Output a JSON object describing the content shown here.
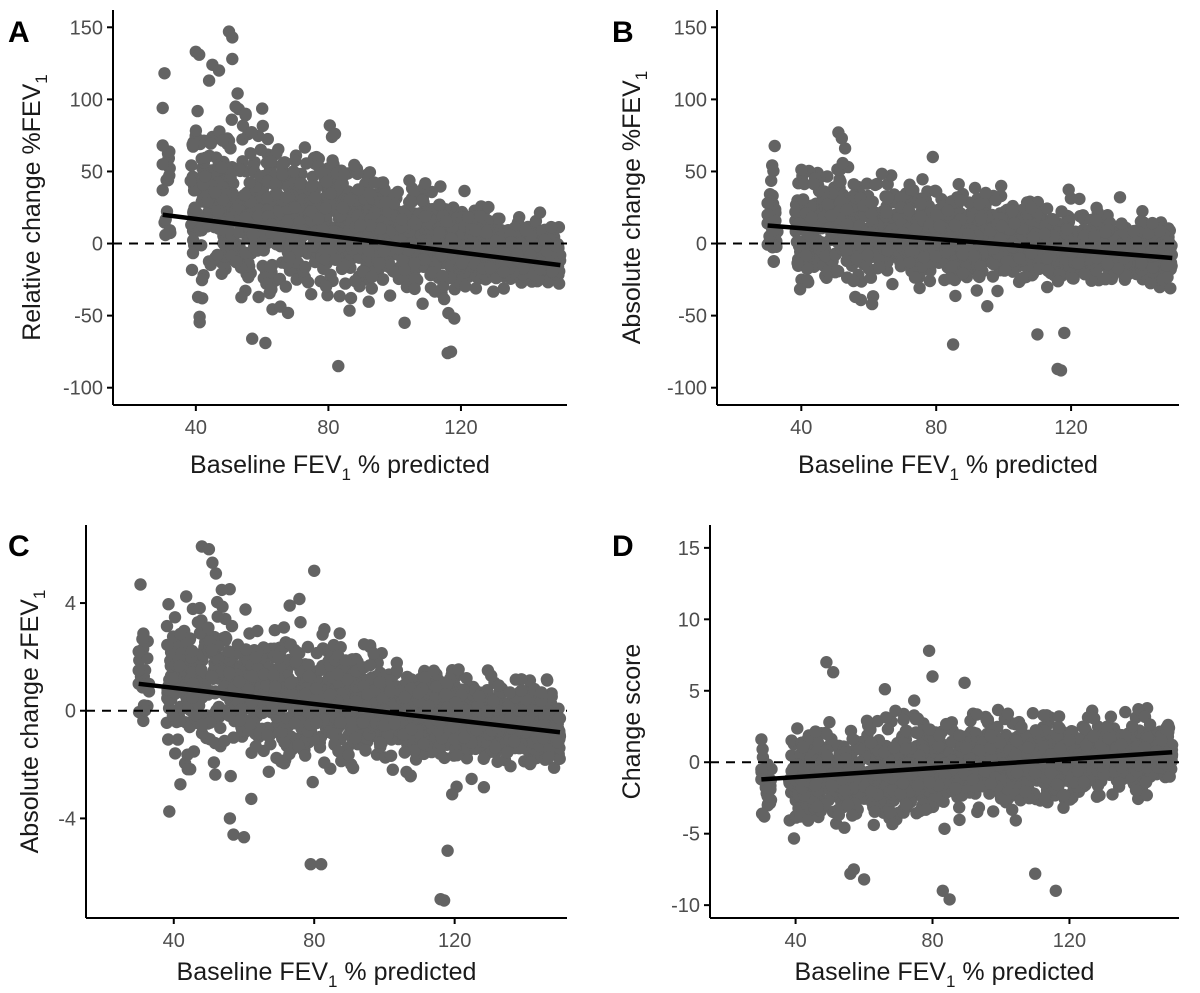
{
  "figure": {
    "point_color": "#636363",
    "line_color": "#000000",
    "axis_color": "#000000",
    "zero_line_color": "#000000"
  },
  "chart_data": [
    {
      "panel": "A",
      "type": "scatter",
      "xlabel": "Baseline FEV",
      "xlabel_sub": "1",
      "xlabel_suffix": " % predicted",
      "ylabel": "Relative change %FEV",
      "ylabel_sub": "1",
      "xlim": [
        15,
        152
      ],
      "ylim": [
        -112,
        162
      ],
      "xticks": [
        40,
        80,
        120
      ],
      "yticks": [
        150,
        100,
        50,
        0,
        -50,
        -100
      ],
      "zero_line": 0,
      "cloud": {
        "x_range": [
          30,
          150
        ],
        "center_at_40": 28,
        "slope": -0.35,
        "spread_at_40": 30,
        "spread_at_150": 8,
        "n": 1700
      },
      "outliers": [
        [
          30,
          94
        ],
        [
          30,
          68
        ],
        [
          30,
          55
        ],
        [
          30,
          37
        ],
        [
          40,
          133
        ],
        [
          41,
          131
        ],
        [
          44,
          113
        ],
        [
          45,
          124
        ],
        [
          47,
          120
        ],
        [
          50,
          147
        ],
        [
          51,
          143
        ],
        [
          51,
          128
        ],
        [
          52,
          95
        ],
        [
          55,
          90
        ],
        [
          57,
          -66
        ],
        [
          61,
          -69
        ],
        [
          82,
          76
        ],
        [
          83,
          -85
        ],
        [
          103,
          -55
        ],
        [
          116,
          -76
        ],
        [
          117,
          -75
        ],
        [
          118,
          -52
        ]
      ],
      "fit_line": {
        "x": [
          30,
          150
        ],
        "y": [
          20,
          -15
        ]
      }
    },
    {
      "panel": "B",
      "type": "scatter",
      "xlabel": "Baseline FEV",
      "xlabel_sub": "1",
      "xlabel_suffix": " % predicted",
      "ylabel": "Absolute change %FEV",
      "ylabel_sub": "1",
      "xlim": [
        15,
        152
      ],
      "ylim": [
        -112,
        162
      ],
      "xticks": [
        40,
        80,
        120
      ],
      "yticks": [
        150,
        100,
        50,
        0,
        -50,
        -100
      ],
      "zero_line": 0,
      "cloud": {
        "x_range": [
          30,
          150
        ],
        "center_at_40": 14,
        "slope": -0.2,
        "spread_at_40": 18,
        "spread_at_150": 9,
        "n": 1700
      },
      "outliers": [
        [
          30,
          28
        ],
        [
          30,
          20
        ],
        [
          30,
          14
        ],
        [
          51,
          77
        ],
        [
          52,
          73
        ],
        [
          53,
          66
        ],
        [
          79,
          60
        ],
        [
          56,
          -37
        ],
        [
          61,
          -42
        ],
        [
          85,
          -70
        ],
        [
          110,
          -63
        ],
        [
          116,
          -87
        ],
        [
          117,
          -88
        ],
        [
          118,
          -62
        ]
      ],
      "fit_line": {
        "x": [
          30,
          150
        ],
        "y": [
          12.5,
          -10
        ]
      }
    },
    {
      "panel": "C",
      "type": "scatter",
      "xlabel": "Baseline FEV",
      "xlabel_sub": "1",
      "xlabel_suffix": " % predicted",
      "ylabel": "Absolute change zFEV",
      "ylabel_sub": "1",
      "xlim": [
        15,
        152
      ],
      "ylim": [
        -7.7,
        6.9
      ],
      "xticks": [
        40,
        80,
        120
      ],
      "yticks": [
        4,
        0,
        -4
      ],
      "zero_line": 0,
      "cloud": {
        "x_range": [
          30,
          150
        ],
        "center_at_40": 1.1,
        "slope": -0.016,
        "spread_at_40": 1.4,
        "spread_at_150": 0.55,
        "n": 1700
      },
      "outliers": [
        [
          30,
          2.2
        ],
        [
          30,
          1.5
        ],
        [
          30,
          1.0
        ],
        [
          48,
          6.1
        ],
        [
          50,
          6.0
        ],
        [
          51,
          5.5
        ],
        [
          52,
          5.1
        ],
        [
          80,
          5.2
        ],
        [
          56,
          -4.0
        ],
        [
          57,
          -4.6
        ],
        [
          60,
          -4.7
        ],
        [
          79,
          -5.7
        ],
        [
          82,
          -5.7
        ],
        [
          116,
          -7.0
        ],
        [
          117,
          -7.05
        ],
        [
          118,
          -5.2
        ]
      ],
      "fit_line": {
        "x": [
          30,
          150
        ],
        "y": [
          1.0,
          -0.8
        ]
      }
    },
    {
      "panel": "D",
      "type": "scatter",
      "xlabel": "Baseline FEV",
      "xlabel_sub": "1",
      "xlabel_suffix": " % predicted",
      "ylabel": "Change score",
      "ylabel_sub": "",
      "xlim": [
        15,
        152
      ],
      "ylim": [
        -10.9,
        16.6
      ],
      "xticks": [
        40,
        80,
        120
      ],
      "yticks": [
        15,
        10,
        5,
        0,
        -5,
        -10
      ],
      "zero_line": 0,
      "cloud": {
        "x_range": [
          30,
          150
        ],
        "center_at_40": -1.0,
        "slope": 0.015,
        "spread_at_40": 1.8,
        "spread_at_150": 1.1,
        "n": 1700
      },
      "outliers": [
        [
          30,
          1.6
        ],
        [
          30,
          -0.5
        ],
        [
          30,
          -1.2
        ],
        [
          49,
          7.0
        ],
        [
          51,
          6.3
        ],
        [
          79,
          7.8
        ],
        [
          80,
          6.0
        ],
        [
          56,
          -7.8
        ],
        [
          57,
          -7.5
        ],
        [
          60,
          -8.2
        ],
        [
          83,
          -9.0
        ],
        [
          85,
          -9.6
        ],
        [
          116,
          -9.0
        ],
        [
          110,
          -7.8
        ]
      ],
      "fit_line": {
        "x": [
          30,
          150
        ],
        "y": [
          -1.2,
          0.7
        ]
      }
    }
  ]
}
